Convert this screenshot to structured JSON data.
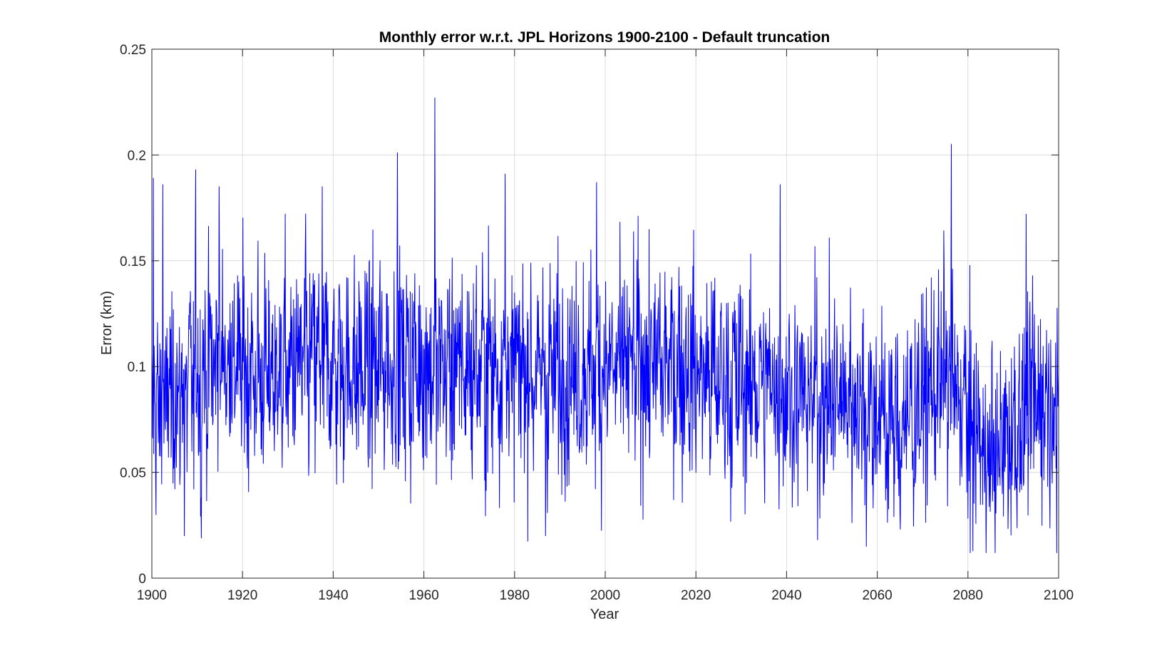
{
  "chart_data": {
    "type": "line",
    "title": "Monthly error w.r.t. JPL Horizons 1900-2100 - Default truncation",
    "xlabel": "Year",
    "ylabel": "Error (km)",
    "xlim": [
      1900,
      2100
    ],
    "ylim": [
      0,
      0.25
    ],
    "grid": true,
    "line_color": "#0000ff",
    "x_ticks": [
      1900,
      1920,
      1940,
      1960,
      1980,
      2000,
      2020,
      2040,
      2060,
      2080,
      2100
    ],
    "y_ticks": [
      0,
      0.05,
      0.1,
      0.15,
      0.2,
      0.25
    ],
    "x_tick_labels": [
      "1900",
      "1920",
      "1940",
      "1960",
      "1980",
      "2000",
      "2020",
      "2040",
      "2060",
      "2080",
      "2100"
    ],
    "y_tick_labels": [
      "0",
      "0.05",
      "0.1",
      "0.15",
      "0.2",
      "0.25"
    ],
    "series": [
      {
        "sampling": "monthly",
        "mean_by_decade": [
          {
            "decade": 1900,
            "mean": 0.085
          },
          {
            "decade": 1910,
            "mean": 0.105
          },
          {
            "decade": 1920,
            "mean": 0.095
          },
          {
            "decade": 1930,
            "mean": 0.103
          },
          {
            "decade": 1940,
            "mean": 0.098
          },
          {
            "decade": 1950,
            "mean": 0.102
          },
          {
            "decade": 1960,
            "mean": 0.1
          },
          {
            "decade": 1970,
            "mean": 0.1
          },
          {
            "decade": 1980,
            "mean": 0.097
          },
          {
            "decade": 1990,
            "mean": 0.098
          },
          {
            "decade": 2000,
            "mean": 0.1
          },
          {
            "decade": 2010,
            "mean": 0.102
          },
          {
            "decade": 2020,
            "mean": 0.092
          },
          {
            "decade": 2030,
            "mean": 0.092
          },
          {
            "decade": 2040,
            "mean": 0.085
          },
          {
            "decade": 2050,
            "mean": 0.085
          },
          {
            "decade": 2060,
            "mean": 0.07
          },
          {
            "decade": 2070,
            "mean": 0.098
          },
          {
            "decade": 2080,
            "mean": 0.055
          },
          {
            "decade": 2090,
            "mean": 0.085
          }
        ],
        "notable_peaks": [
          {
            "x": 1900.3,
            "y": 0.189
          },
          {
            "x": 1902.4,
            "y": 0.186
          },
          {
            "x": 1909.7,
            "y": 0.193
          },
          {
            "x": 1914.8,
            "y": 0.185
          },
          {
            "x": 1937.6,
            "y": 0.185
          },
          {
            "x": 1954.2,
            "y": 0.201
          },
          {
            "x": 1962.4,
            "y": 0.227
          },
          {
            "x": 1977.9,
            "y": 0.191
          },
          {
            "x": 1998.1,
            "y": 0.187
          },
          {
            "x": 2038.6,
            "y": 0.186
          },
          {
            "x": 2076.3,
            "y": 0.205
          },
          {
            "x": 2092.8,
            "y": 0.172
          }
        ],
        "notable_troughs": [
          {
            "x": 1900.9,
            "y": 0.03
          },
          {
            "x": 1907.2,
            "y": 0.02
          },
          {
            "x": 1910.9,
            "y": 0.019
          },
          {
            "x": 1986.8,
            "y": 0.02
          },
          {
            "x": 2057.6,
            "y": 0.015
          },
          {
            "x": 2080.5,
            "y": 0.012
          },
          {
            "x": 2099.6,
            "y": 0.012
          }
        ]
      }
    ]
  }
}
